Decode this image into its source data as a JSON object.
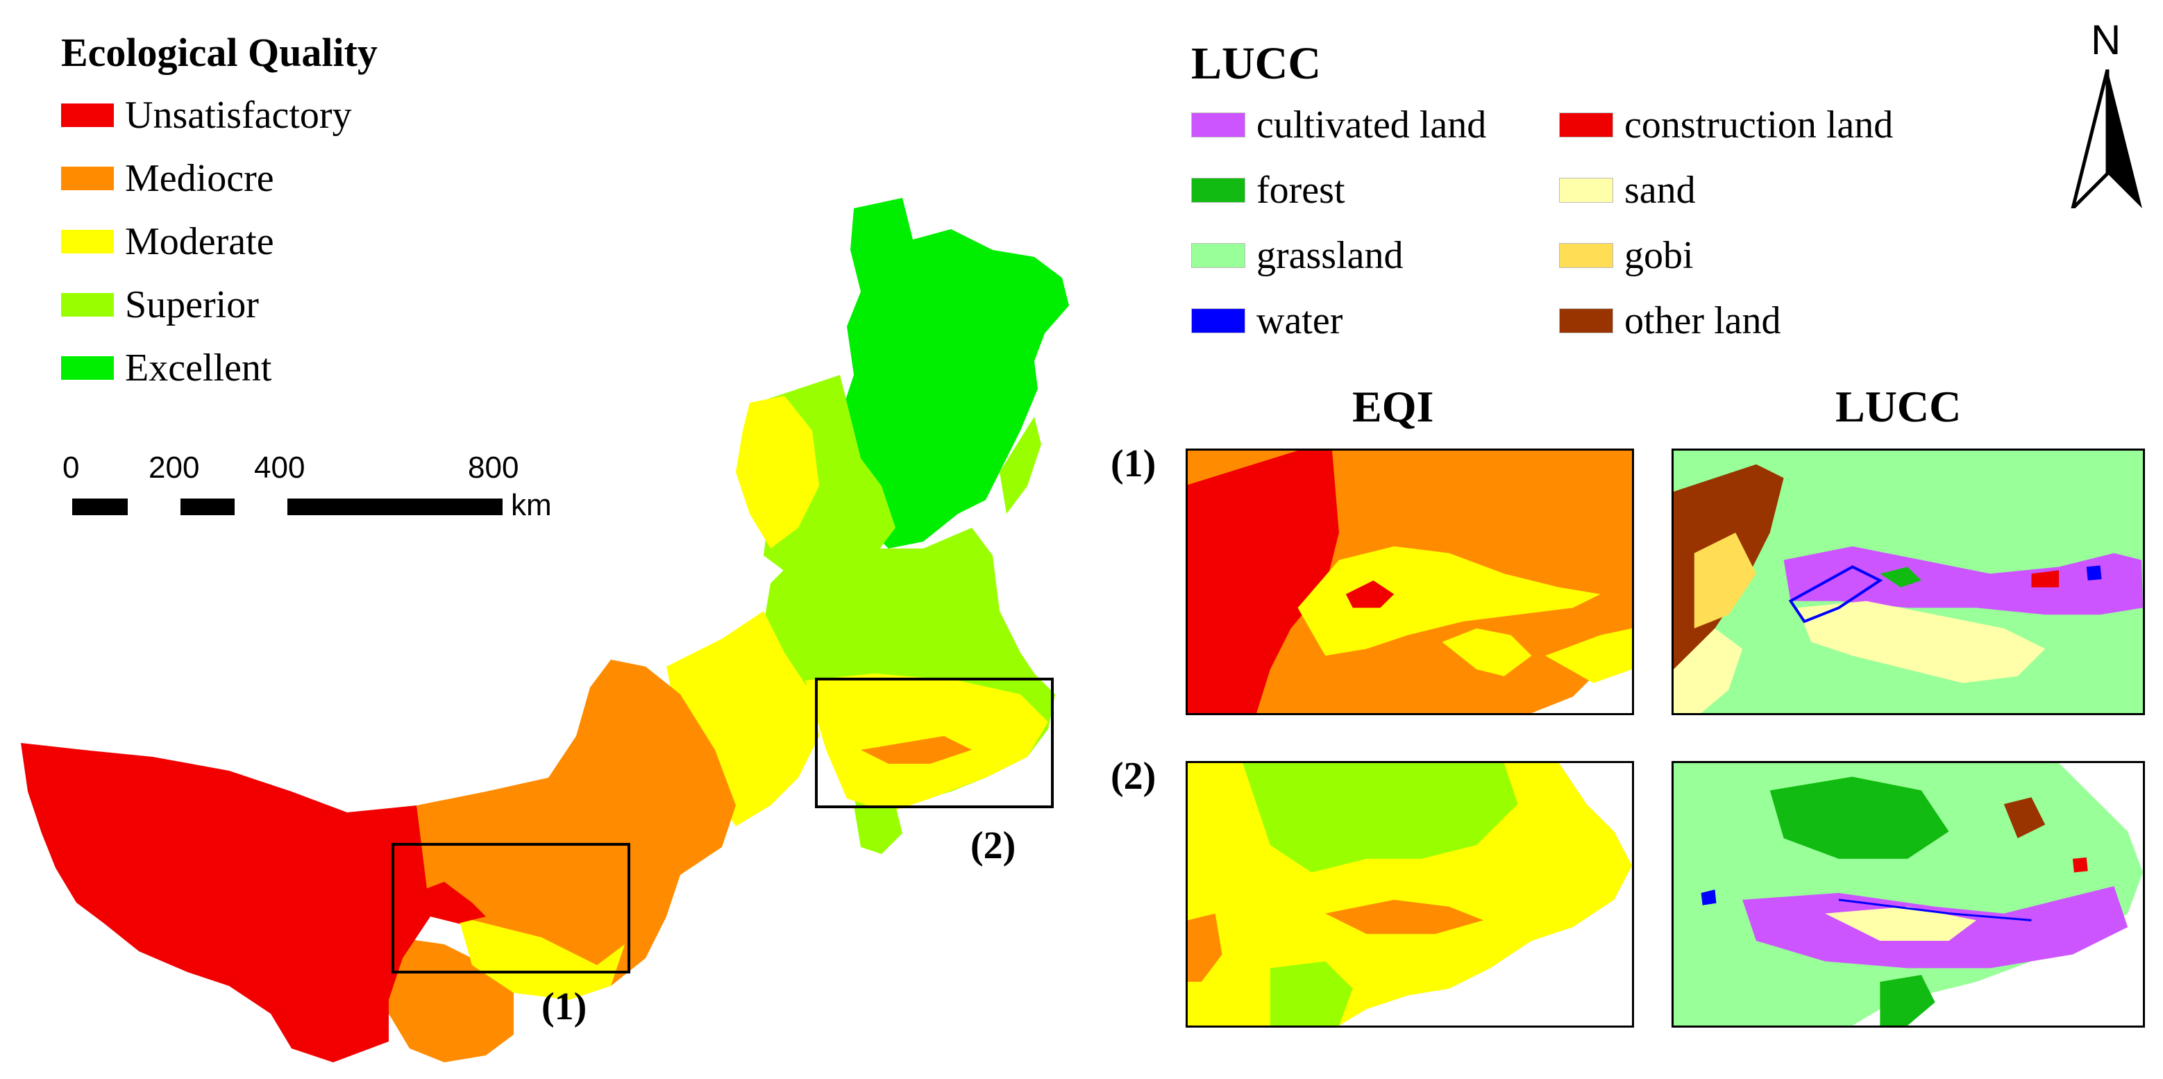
{
  "eq_legend": {
    "title": "Ecological Quality",
    "items": [
      {
        "label": "Unsatisfactory",
        "color": "#f20000"
      },
      {
        "label": "Mediocre",
        "color": "#ff8c00"
      },
      {
        "label": "Moderate",
        "color": "#ffff00"
      },
      {
        "label": "Superior",
        "color": "#99ff00"
      },
      {
        "label": "Excellent",
        "color": "#00ee00"
      }
    ]
  },
  "scale_bar": {
    "ticks": [
      "0",
      "200",
      "400",
      "800"
    ],
    "unit": "km"
  },
  "lucc_legend": {
    "title": "LUCC",
    "items": [
      {
        "label": "cultivated land",
        "color": "#cc55ff"
      },
      {
        "label": "construction land",
        "color": "#ee0000"
      },
      {
        "label": "forest",
        "color": "#11bb11"
      },
      {
        "label": "sand",
        "color": "#ffffaa"
      },
      {
        "label": "grassland",
        "color": "#99ff99"
      },
      {
        "label": "gobi",
        "color": "#ffdd55"
      },
      {
        "label": "water",
        "color": "#0000ff"
      },
      {
        "label": "other land",
        "color": "#993300"
      }
    ]
  },
  "north_arrow": {
    "label": "N"
  },
  "columns": {
    "eqi": "EQI",
    "lucc": "LUCC"
  },
  "regions": {
    "r1": "(1)",
    "r2": "(2)"
  }
}
